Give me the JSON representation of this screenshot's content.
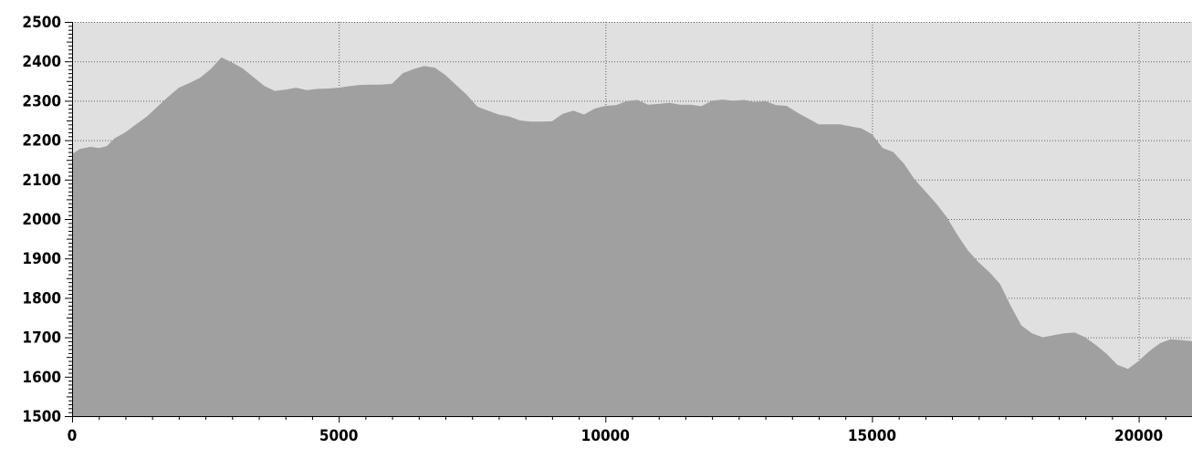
{
  "chart_data": {
    "type": "area",
    "title": "",
    "xlabel": "",
    "ylabel": "",
    "xlim": [
      0,
      21000
    ],
    "ylim": [
      1500,
      2500
    ],
    "x_ticks": [
      0,
      5000,
      10000,
      15000,
      20000
    ],
    "x_tick_labels": [
      "0",
      "5000",
      "10000",
      "15000",
      "20000"
    ],
    "y_ticks": [
      1500,
      1600,
      1700,
      1800,
      1900,
      2000,
      2100,
      2200,
      2300,
      2400,
      2500
    ],
    "y_tick_labels": [
      "1500",
      "1600",
      "1700",
      "1800",
      "1900",
      "2000",
      "2100",
      "2200",
      "2300",
      "2400",
      "2500"
    ],
    "grid": true,
    "colors": {
      "fill": "#a0a0a0",
      "plot_background": "#e0e0e0",
      "grid": "#606060",
      "axis": "#000000"
    },
    "x": [
      0,
      150,
      350,
      500,
      650,
      800,
      1000,
      1200,
      1400,
      1600,
      1800,
      2000,
      2200,
      2400,
      2600,
      2800,
      3000,
      3200,
      3400,
      3600,
      3800,
      4000,
      4200,
      4400,
      4600,
      4800,
      5000,
      5200,
      5400,
      5600,
      5800,
      6000,
      6200,
      6400,
      6600,
      6800,
      7000,
      7200,
      7400,
      7600,
      7800,
      8000,
      8200,
      8400,
      8600,
      8800,
      9000,
      9200,
      9400,
      9600,
      9800,
      10000,
      10200,
      10400,
      10600,
      10800,
      11000,
      11200,
      11400,
      11600,
      11800,
      12000,
      12200,
      12400,
      12600,
      12800,
      13000,
      13200,
      13400,
      13600,
      13800,
      14000,
      14200,
      14400,
      14600,
      14800,
      15000,
      15200,
      15400,
      15600,
      15800,
      16000,
      16200,
      16400,
      16600,
      16800,
      17000,
      17200,
      17400,
      17600,
      17800,
      18000,
      18200,
      18400,
      18600,
      18800,
      19000,
      19200,
      19400,
      19600,
      19800,
      20000,
      20200,
      20400,
      20600,
      20800,
      21000
    ],
    "series": [
      {
        "values": [
          2165,
          2178,
          2183,
          2180,
          2185,
          2205,
          2220,
          2240,
          2260,
          2285,
          2310,
          2333,
          2345,
          2358,
          2380,
          2410,
          2397,
          2382,
          2360,
          2338,
          2325,
          2328,
          2333,
          2327,
          2330,
          2331,
          2333,
          2337,
          2340,
          2341,
          2341,
          2343,
          2370,
          2380,
          2388,
          2384,
          2365,
          2340,
          2315,
          2285,
          2275,
          2265,
          2260,
          2250,
          2247,
          2247,
          2248,
          2267,
          2275,
          2265,
          2280,
          2287,
          2289,
          2299,
          2302,
          2290,
          2292,
          2295,
          2290,
          2290,
          2286,
          2300,
          2303,
          2300,
          2302,
          2297,
          2299,
          2289,
          2287,
          2270,
          2255,
          2240,
          2240,
          2240,
          2235,
          2230,
          2215,
          2180,
          2170,
          2140,
          2100,
          2070,
          2040,
          2005,
          1960,
          1920,
          1890,
          1865,
          1835,
          1780,
          1730,
          1710,
          1700,
          1705,
          1710,
          1712,
          1700,
          1680,
          1658,
          1630,
          1620,
          1640,
          1665,
          1685,
          1695,
          1693,
          1690
        ]
      }
    ]
  }
}
